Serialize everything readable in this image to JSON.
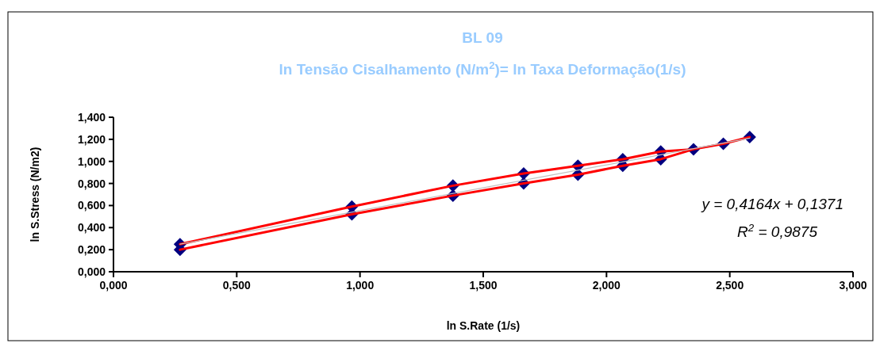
{
  "chart_data": {
    "type": "line",
    "title": "BL 09",
    "subtitle": "ln Tensão Cisalhamento (N/m$^{2}$)= ln Taxa Deformação(1/s)",
    "xlabel": "ln S.Rate (1/s)",
    "ylabel": "ln S.Stress (N/m2)",
    "xlim": [
      0,
      3
    ],
    "xticks": [
      {
        "value": 0,
        "label": "0,000"
      },
      {
        "value": 0.5,
        "label": "0,500"
      },
      {
        "value": 1,
        "label": "1,000"
      },
      {
        "value": 1.5,
        "label": "1,500"
      },
      {
        "value": 2,
        "label": "2,000"
      },
      {
        "value": 2.5,
        "label": "2,500"
      },
      {
        "value": 3,
        "label": "3,000"
      }
    ],
    "ylim": [
      0,
      1.4
    ],
    "yticks": [
      {
        "value": 0,
        "label": "0,000"
      },
      {
        "value": 0.2,
        "label": "0,200"
      },
      {
        "value": 0.4,
        "label": "0,400"
      },
      {
        "value": 0.6,
        "label": "0,600"
      },
      {
        "value": 0.8,
        "label": "0,800"
      },
      {
        "value": 1,
        "label": "1,000"
      },
      {
        "value": 1.2,
        "label": "1,200"
      },
      {
        "value": 1.4,
        "label": "1,400"
      }
    ],
    "series": [
      {
        "type": "scatter",
        "color": "#000080",
        "marker": "diamond",
        "x": [
          0.27,
          0.967,
          1.377,
          1.664,
          1.884,
          2.066,
          2.22,
          2.353,
          2.474,
          2.581,
          2.22,
          2.066,
          1.884,
          1.664,
          1.377,
          0.967,
          0.27
        ],
        "values": [
          0.2,
          0.52,
          0.69,
          0.8,
          0.88,
          0.96,
          1.02,
          1.11,
          1.16,
          1.22,
          1.09,
          1.02,
          0.96,
          0.89,
          0.78,
          0.59,
          0.25
        ]
      },
      {
        "type": "line",
        "color": "#ff0000",
        "marker": "none",
        "x": [
          0.27,
          0.967,
          1.377,
          1.664,
          1.884,
          2.066,
          2.22,
          2.353,
          2.474,
          2.581,
          2.474,
          2.353,
          2.22,
          2.066,
          1.884,
          1.664,
          1.377,
          0.967,
          0.27
        ],
        "values": [
          0.2,
          0.52,
          0.69,
          0.8,
          0.88,
          0.96,
          1.02,
          1.11,
          1.16,
          1.22,
          1.16,
          1.11,
          1.09,
          1.02,
          0.96,
          0.89,
          0.78,
          0.59,
          0.25
        ]
      },
      {
        "type": "line",
        "color": "#c0c0c0",
        "marker": "none",
        "x": [
          0.27,
          2.581
        ],
        "values": [
          0.25,
          1.21
        ]
      }
    ],
    "annotations": [
      "y = 0,4164x + 0,1371",
      "R$^{2}$ = 0,9875"
    ],
    "grid": false
  }
}
